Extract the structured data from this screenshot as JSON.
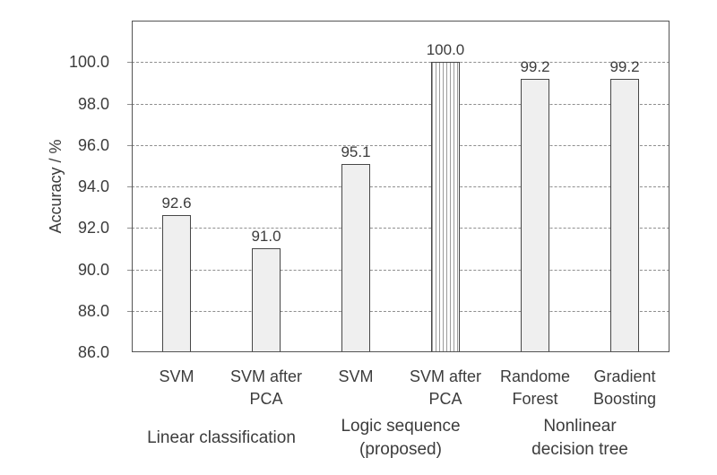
{
  "figure": {
    "background": "#ffffff"
  },
  "chart_data": {
    "type": "bar",
    "title": "",
    "ylabel": "Accuracy / %",
    "xlabel": "",
    "ylim": [
      86,
      102
    ],
    "y_major_unit": 2,
    "y_ticks": [
      86,
      88,
      90,
      92,
      94,
      96,
      98,
      100
    ],
    "y_tick_labels": [
      "86.0",
      "88.0",
      "90.0",
      "92.0",
      "94.0",
      "96.0",
      "98.0",
      "100.0"
    ],
    "grid": "horizontal-dashed",
    "legend": "none",
    "categories": [
      "SVM",
      "SVM after PCA",
      "SVM",
      "SVM after PCA",
      "Randome Forest",
      "Gradient Boosting"
    ],
    "category_label_lines": [
      [
        "SVM"
      ],
      [
        "SVM after",
        "PCA"
      ],
      [
        "SVM"
      ],
      [
        "SVM after",
        "PCA"
      ],
      [
        "Randome",
        "Forest"
      ],
      [
        "Gradient",
        "Boosting"
      ]
    ],
    "values": [
      92.6,
      91.0,
      95.1,
      100.0,
      99.2,
      99.2
    ],
    "data_labels": [
      "92.6",
      "91.0",
      "95.1",
      "100.0",
      "99.2",
      "99.2"
    ],
    "bar_styles": [
      "solid",
      "solid",
      "solid",
      "vertical-hatch",
      "solid",
      "solid"
    ],
    "groups": [
      {
        "label": "Linear classification",
        "lines": [
          "Linear classification"
        ],
        "categories": [
          0,
          1
        ]
      },
      {
        "label": "Logic sequence (proposed)",
        "lines": [
          "Logic sequence",
          "(proposed)"
        ],
        "categories": [
          2,
          3
        ]
      },
      {
        "label": "Nonlinear decision tree",
        "lines": [
          "Nonlinear",
          "decision tree"
        ],
        "categories": [
          4,
          5
        ]
      }
    ],
    "colors": {
      "bg": "#ffffff",
      "bar_fill": "#efefef",
      "bar_border": "#474747",
      "hatch_line": "#9b9b9b",
      "hatch_bg": "#ffffff",
      "gridline": "#8f8f8f",
      "frame": "#545454",
      "text": "#3c3c3c"
    }
  }
}
